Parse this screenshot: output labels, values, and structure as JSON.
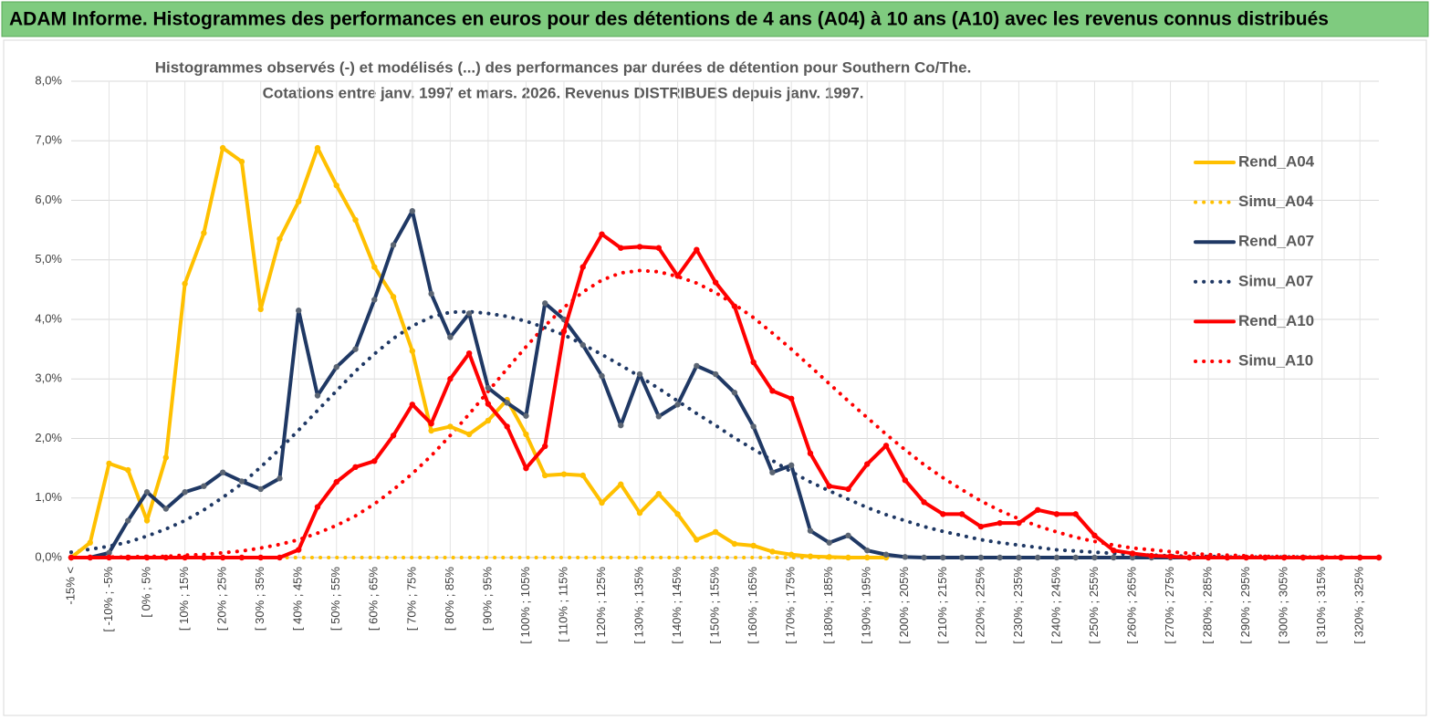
{
  "chart_data": {
    "type": "line",
    "title": "ADAM Informe. Histogrammes des performances en euros pour des détentions de 4 ans (A04) à 10 ans (A10) avec les revenus connus distribués",
    "subtitle": [
      "Histogrammes observés (-) et modélisés (...) des performances par durées de détention pour Southern Co/The.",
      "Cotations entre janv. 1997 et mars. 2026.  Revenus DISTRIBUES depuis janv. 1997."
    ],
    "categories": [
      "-15% <",
      null,
      "[ -10% ; -5%",
      null,
      "[ 0% ; 5%",
      null,
      "[ 10% ; 15%",
      null,
      "[ 20% ; 25%",
      null,
      "[ 30% ; 35%",
      null,
      "[ 40% ; 45%",
      null,
      "[ 50% ; 55%",
      null,
      "[ 60% ; 65%",
      null,
      "[ 70% ; 75%",
      null,
      "[ 80% ; 85%",
      null,
      "[ 90% ; 95%",
      null,
      "[ 100% ; 105%",
      null,
      "[ 110% ; 115%",
      null,
      "[ 120% ; 125%",
      null,
      "[ 130% ; 135%",
      null,
      "[ 140% ; 145%",
      null,
      "[ 150% ; 155%",
      null,
      "[ 160% ; 165%",
      null,
      "[ 170% ; 175%",
      null,
      "[ 180% ; 185%",
      null,
      "[ 190% ; 195%",
      null,
      "[ 200% ; 205%",
      null,
      "[ 210% ; 215%",
      null,
      "[ 220% ; 225%",
      null,
      "[ 230% ; 235%",
      null,
      "[ 240% ; 245%",
      null,
      "[ 250% ; 255%",
      null,
      "[ 260% ; 265%",
      null,
      "[ 270% ; 275%",
      null,
      "[ 280% ; 285%",
      null,
      "[ 290% ; 295%",
      null,
      "[ 300% ; 305%",
      null,
      "[ 310% ; 315%",
      null,
      "[ 320% ; 325%",
      null
    ],
    "ylim": [
      0,
      8
    ],
    "yticks": [
      {
        "value": 0,
        "label": "0,0%"
      },
      {
        "value": 1,
        "label": "1,0%"
      },
      {
        "value": 2,
        "label": "2,0%"
      },
      {
        "value": 3,
        "label": "3,0%"
      },
      {
        "value": 4,
        "label": "4,0%"
      },
      {
        "value": 5,
        "label": "5,0%"
      },
      {
        "value": 6,
        "label": "6,0%"
      },
      {
        "value": 7,
        "label": "7,0%"
      },
      {
        "value": 8,
        "label": "8,0%"
      }
    ],
    "grid": true,
    "legend": "right",
    "series": [
      {
        "name": "Rend_A04",
        "color": "#ffc000",
        "line_style": "solid",
        "markers": true,
        "marker_color": "#ffc000",
        "values": [
          0,
          0.25,
          1.58,
          1.47,
          0.62,
          1.68,
          4.6,
          5.45,
          6.88,
          6.65,
          4.17,
          5.35,
          5.98,
          6.88,
          6.25,
          5.67,
          4.88,
          4.38,
          3.47,
          2.13,
          2.2,
          2.07,
          2.3,
          2.65,
          2.07,
          1.38,
          1.4,
          1.38,
          0.92,
          1.23,
          0.75,
          1.07,
          0.73,
          0.3,
          0.43,
          0.23,
          0.2,
          0.1,
          0.05,
          0.02,
          0.01,
          0,
          0,
          0,
          null,
          null,
          null,
          null,
          null,
          null,
          null,
          null,
          null,
          null,
          null,
          null,
          null,
          null,
          null,
          null,
          null,
          null,
          null,
          null,
          null,
          null,
          null,
          null,
          null,
          null
        ]
      },
      {
        "name": "Simu_A04",
        "color": "#ffc000",
        "line_style": "dotted",
        "markers": false,
        "values": [
          0,
          0,
          0,
          0,
          0,
          0,
          0,
          0,
          0,
          0,
          0,
          0,
          0,
          0,
          0,
          0,
          0,
          0,
          0,
          0,
          0,
          0,
          0,
          0,
          0,
          0,
          0,
          0,
          0,
          0,
          0,
          0,
          0,
          0,
          0,
          0,
          0,
          0,
          0,
          0,
          0,
          0,
          0,
          0,
          null,
          null,
          null,
          null,
          null,
          null,
          null,
          null,
          null,
          null,
          null,
          null,
          null,
          null,
          null,
          null,
          null,
          null,
          null,
          null,
          null,
          null,
          null,
          null,
          null,
          null
        ]
      },
      {
        "name": "Rend_A07",
        "color": "#1f3864",
        "line_style": "solid",
        "markers": true,
        "marker_color": "#5b6573",
        "values": [
          0,
          0,
          0.08,
          0.62,
          1.1,
          0.82,
          1.1,
          1.2,
          1.43,
          1.28,
          1.15,
          1.33,
          4.15,
          2.72,
          3.2,
          3.5,
          4.33,
          5.25,
          5.82,
          4.43,
          3.7,
          4.1,
          2.85,
          2.6,
          2.38,
          4.27,
          4.0,
          3.57,
          3.05,
          2.22,
          3.08,
          2.37,
          2.57,
          3.22,
          3.08,
          2.77,
          2.2,
          1.43,
          1.55,
          0.45,
          0.25,
          0.37,
          0.12,
          0.05,
          0.01,
          0,
          0,
          0,
          0,
          0,
          0,
          0,
          0,
          0,
          0,
          0,
          0,
          0,
          0,
          0,
          0,
          0,
          0,
          0,
          0,
          0,
          0,
          0,
          0,
          0
        ]
      },
      {
        "name": "Simu_A07",
        "color": "#1f3864",
        "line_style": "dotted",
        "markers": false,
        "values": [
          0.09,
          0.14,
          0.19,
          0.26,
          0.36,
          0.48,
          0.62,
          0.8,
          1.01,
          1.24,
          1.52,
          1.82,
          2.14,
          2.47,
          2.8,
          3.13,
          3.42,
          3.68,
          3.89,
          4.04,
          4.12,
          4.13,
          4.1,
          4.05,
          3.97,
          3.86,
          3.74,
          3.58,
          3.41,
          3.23,
          3.04,
          2.84,
          2.63,
          2.42,
          2.22,
          2.01,
          1.82,
          1.63,
          1.44,
          1.27,
          1.12,
          0.98,
          0.84,
          0.72,
          0.62,
          0.52,
          0.44,
          0.37,
          0.3,
          0.25,
          0.21,
          0.17,
          0.13,
          0.11,
          0.09,
          0.07,
          0.05,
          0.04,
          0.03,
          0.02,
          0.02,
          0.01,
          0.01,
          0.01,
          0.01,
          0.01,
          0,
          0,
          0,
          0
        ]
      },
      {
        "name": "Rend_A10",
        "color": "#ff0000",
        "line_style": "solid",
        "markers": true,
        "marker_color": "#ff0000",
        "values": [
          0,
          0,
          0,
          0,
          0,
          0,
          0,
          0,
          0,
          0,
          0,
          0,
          0.13,
          0.85,
          1.27,
          1.52,
          1.62,
          2.05,
          2.57,
          2.25,
          3.0,
          3.43,
          2.58,
          2.2,
          1.5,
          1.87,
          3.8,
          4.88,
          5.43,
          5.2,
          5.22,
          5.2,
          4.73,
          5.17,
          4.62,
          4.22,
          3.28,
          2.8,
          2.67,
          1.75,
          1.2,
          1.15,
          1.57,
          1.88,
          1.3,
          0.93,
          0.73,
          0.73,
          0.52,
          0.58,
          0.58,
          0.8,
          0.73,
          0.73,
          0.37,
          0.12,
          0.07,
          0.03,
          0.02,
          0,
          0,
          0,
          0,
          0,
          0,
          0,
          0,
          0,
          0,
          0
        ]
      },
      {
        "name": "Simu_A10",
        "color": "#ff0000",
        "line_style": "dotted",
        "markers": false,
        "values": [
          0,
          0,
          0.01,
          0.01,
          0.02,
          0.02,
          0.04,
          0.05,
          0.08,
          0.11,
          0.16,
          0.22,
          0.3,
          0.41,
          0.54,
          0.7,
          0.9,
          1.14,
          1.41,
          1.71,
          2.05,
          2.41,
          2.79,
          3.17,
          3.54,
          3.89,
          4.2,
          4.46,
          4.66,
          4.78,
          4.82,
          4.8,
          4.72,
          4.61,
          4.45,
          4.25,
          4.03,
          3.77,
          3.5,
          3.21,
          2.92,
          2.63,
          2.35,
          2.07,
          1.81,
          1.56,
          1.34,
          1.14,
          0.95,
          0.79,
          0.65,
          0.53,
          0.43,
          0.34,
          0.27,
          0.21,
          0.16,
          0.13,
          0.1,
          0.07,
          0.05,
          0.04,
          0.03,
          0.02,
          0.02,
          0.01,
          0.01,
          0.01,
          0,
          0
        ]
      }
    ]
  }
}
